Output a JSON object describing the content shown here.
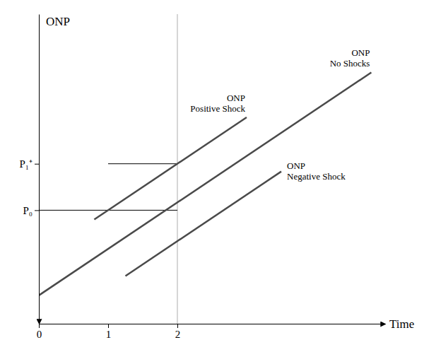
{
  "chart_data": {
    "type": "line",
    "xlabel": "Time",
    "ylabel": "ONP",
    "xlim": [
      0,
      5.0
    ],
    "ylim": [
      0,
      6.0
    ],
    "xticks": [
      0,
      1,
      2
    ],
    "yticks": [
      {
        "value": 2.2,
        "label": "P₀"
      },
      {
        "value": 3.1,
        "label": "P₁⁺"
      }
    ],
    "color": "#4a4a4a",
    "series": [
      {
        "name": "ONP\nNo Shocks",
        "x": [
          0.0,
          4.8
        ],
        "values": [
          0.55,
          4.87
        ]
      },
      {
        "name": "ONP\nPositive Shock",
        "x": [
          0.8,
          3.0
        ],
        "values": [
          2.02,
          4.0
        ]
      },
      {
        "name": "ONP\nNegative Shock",
        "x": [
          1.25,
          3.5
        ],
        "values": [
          0.925,
          2.95
        ]
      }
    ],
    "vlines": [
      {
        "x": 2.0,
        "color": "#c8c8c8"
      }
    ],
    "hlines": [
      {
        "y": 2.2,
        "x_start": 0.0,
        "x_end": 2.0,
        "color": "#000000"
      },
      {
        "y": 3.1,
        "x_start": 1.0,
        "x_end": 2.0,
        "color": "#000000"
      }
    ]
  }
}
